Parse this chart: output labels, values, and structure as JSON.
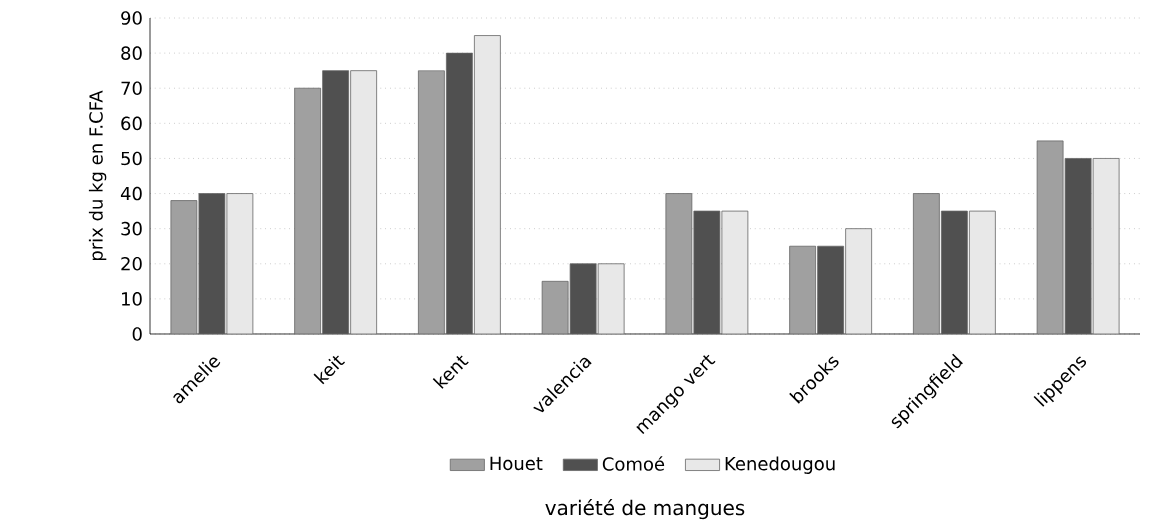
{
  "chart_data": {
    "type": "bar",
    "xlabel": "variété de mangues",
    "ylabel": "prix du kg en F.CFA",
    "categories": [
      "amelie",
      "keit",
      "kent",
      "valencia",
      "mango vert",
      "brooks",
      "springfield",
      "lippens"
    ],
    "series": [
      {
        "name": "Houet",
        "color": "#a0a0a0",
        "values": [
          38,
          70,
          75,
          15,
          40,
          25,
          40,
          55
        ]
      },
      {
        "name": "Comoé",
        "color": "#505050",
        "values": [
          40,
          75,
          80,
          20,
          35,
          25,
          35,
          50
        ]
      },
      {
        "name": "Kenedougou",
        "color": "#e8e8e8",
        "values": [
          40,
          75,
          85,
          20,
          35,
          30,
          35,
          50
        ]
      }
    ],
    "ylim": [
      0,
      90
    ],
    "yticks": [
      0,
      10,
      20,
      30,
      40,
      50,
      60,
      70,
      80,
      90
    ],
    "grid": "y",
    "legend": "bottom"
  }
}
